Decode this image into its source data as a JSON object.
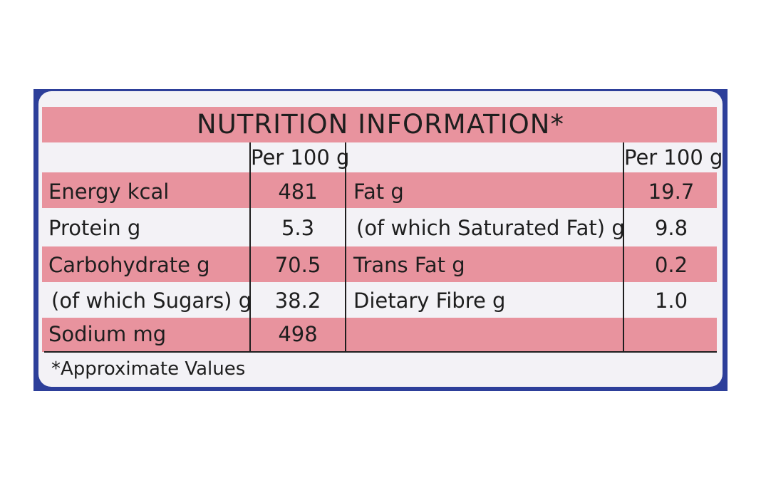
{
  "title": "NUTRITION INFORMATION*",
  "column_header": "Per 100 g",
  "left_rows": [
    {
      "label": "Energy kcal",
      "value": "481"
    },
    {
      "label": "Protein g",
      "value": "5.3"
    },
    {
      "label": "Carbohydrate g",
      "value": "70.5"
    },
    {
      "label": "(of which Sugars) g",
      "value": "38.2"
    },
    {
      "label": "Sodium mg",
      "value": "498"
    }
  ],
  "right_rows": [
    {
      "label": "Fat g",
      "value": "19.7"
    },
    {
      "label": "(of which Saturated Fat) g",
      "value": "9.8"
    },
    {
      "label": "Trans Fat g",
      "value": "0.2"
    },
    {
      "label": "Dietary Fibre g",
      "value": "1.0"
    },
    {
      "label": "",
      "value": ""
    }
  ],
  "footnote": "*Approximate Values",
  "colors": {
    "band": "#e8939e",
    "label_bg": "#f3f2f6",
    "wrapper": "#2d3f9a",
    "text": "#1e1e1e"
  }
}
